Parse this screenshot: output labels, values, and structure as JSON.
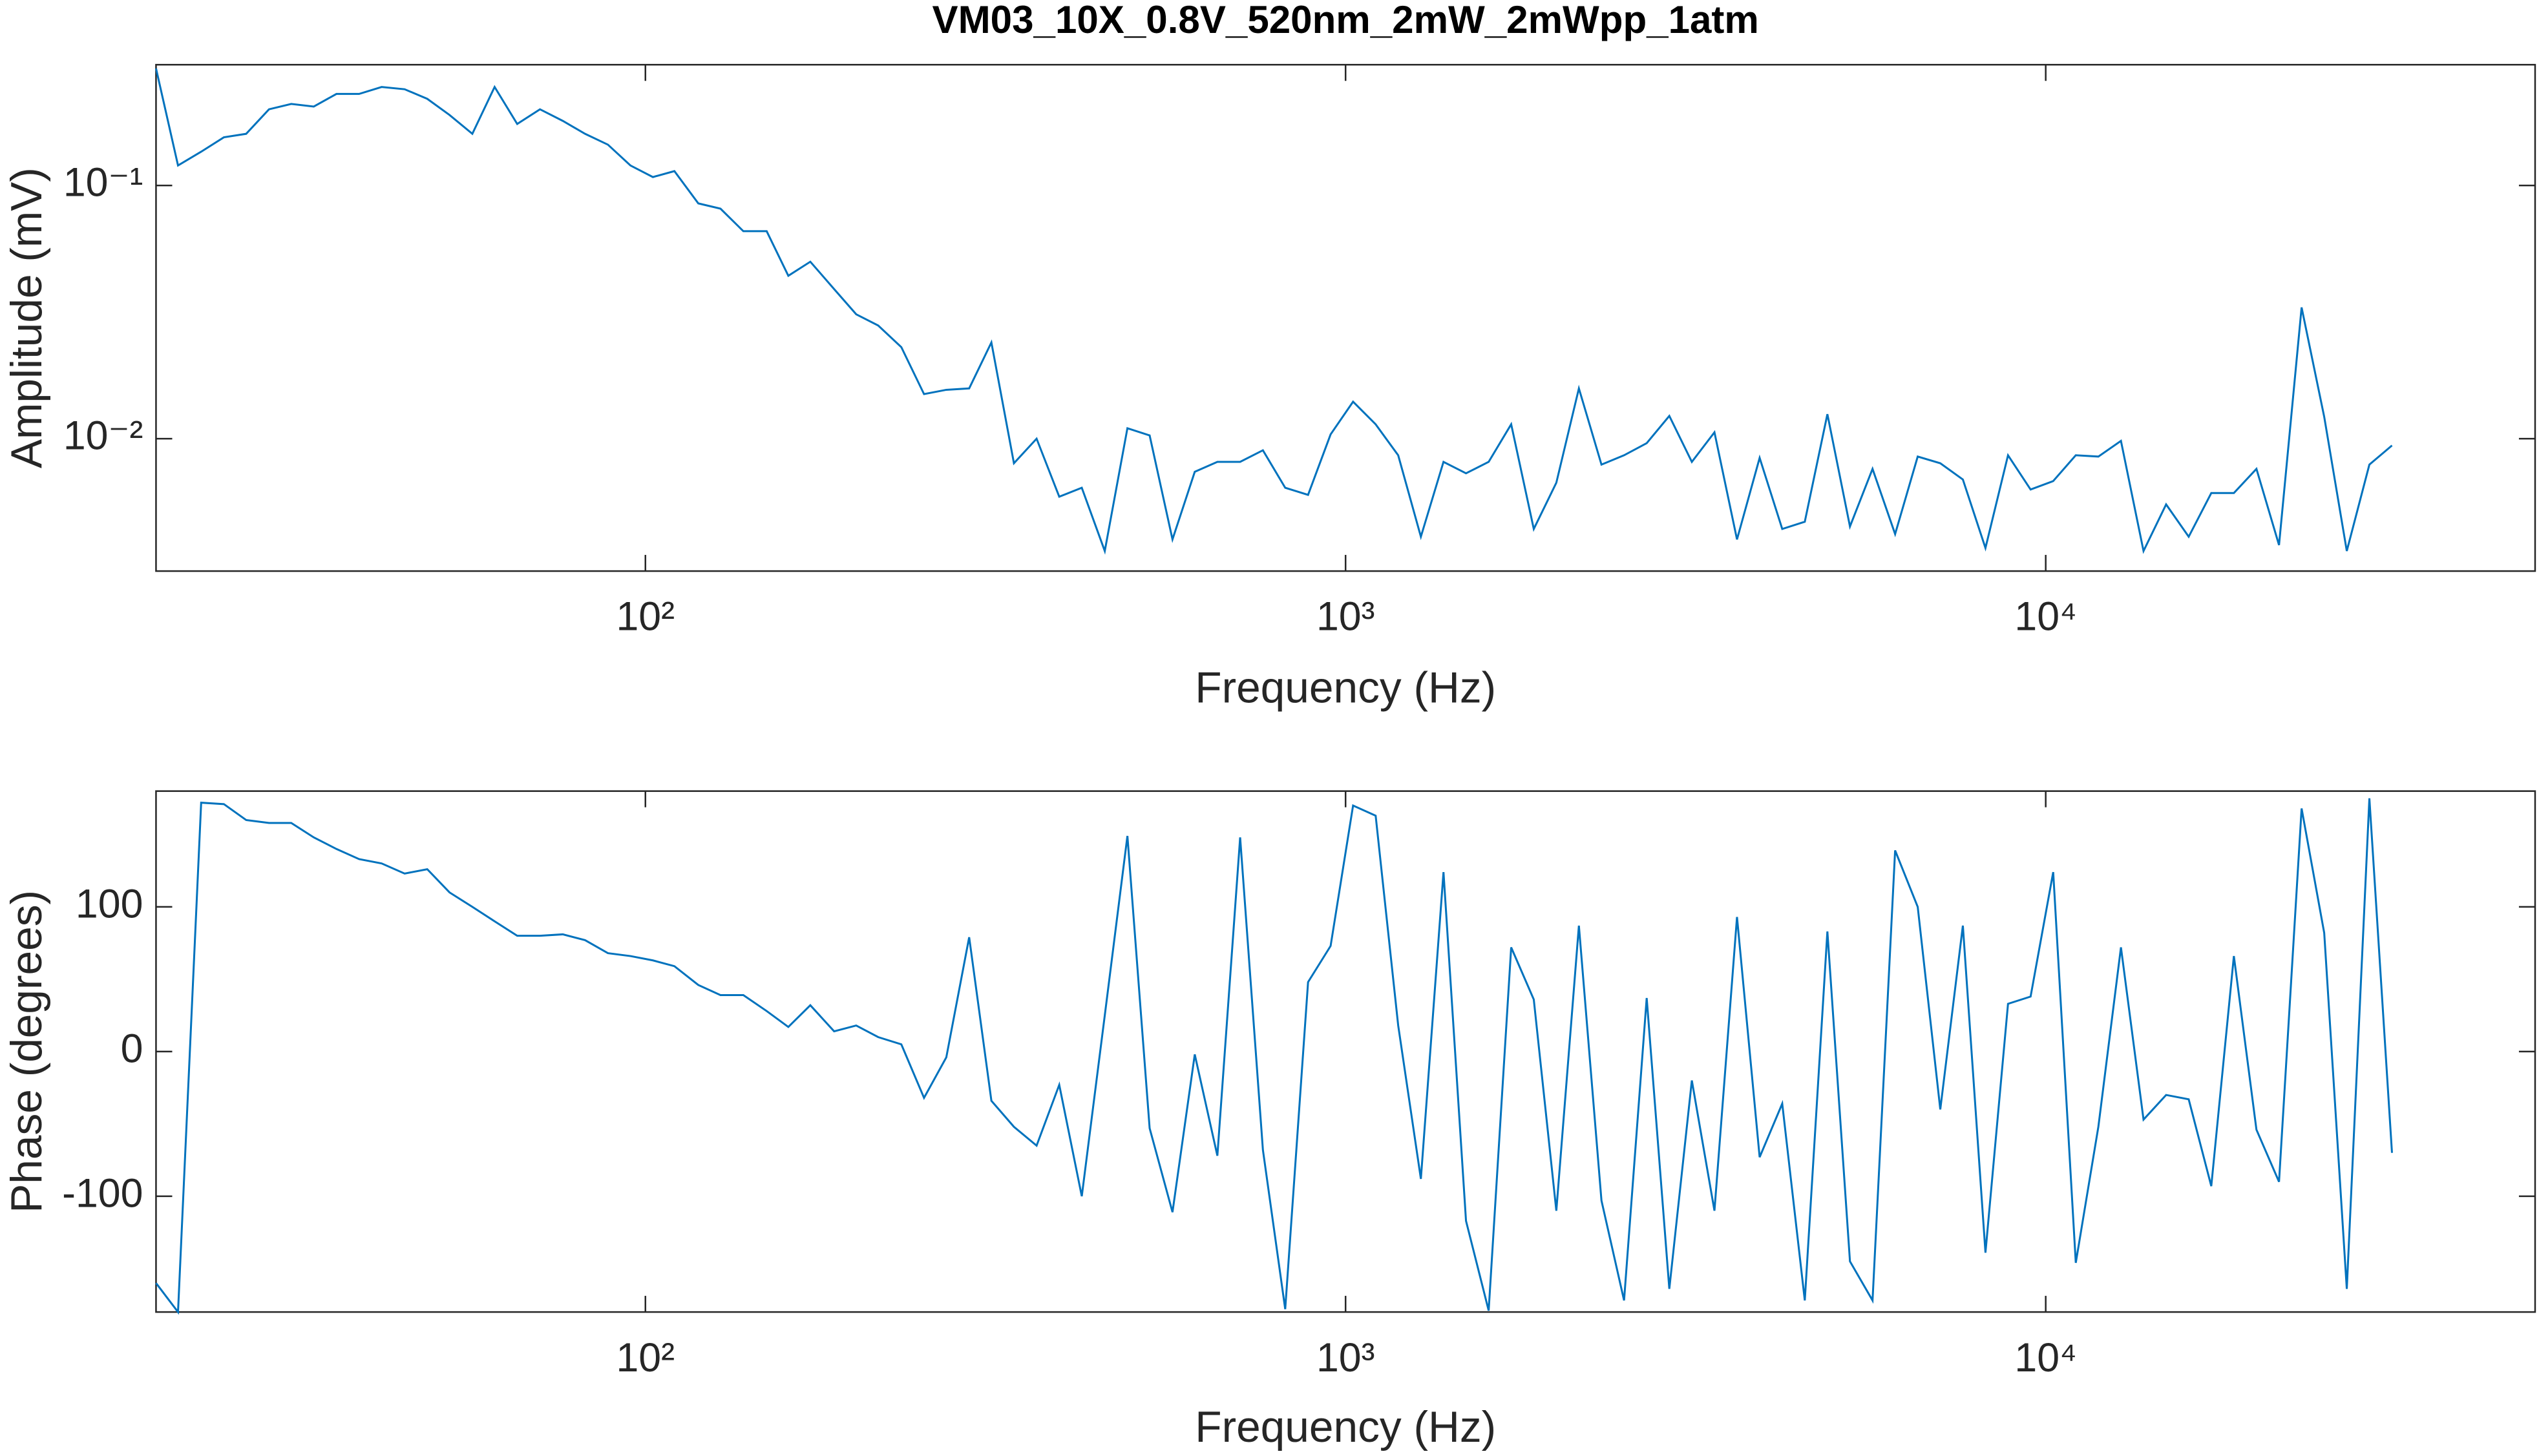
{
  "chart_data": [
    {
      "type": "line",
      "title": "VM03_10X_0.8V_520nm_2mW_2mWpp_1atm",
      "xlabel": "Frequency (Hz)",
      "ylabel": "Amplitude (mV)",
      "color": "#0072bd",
      "xscale": "log",
      "yscale": "log",
      "xlim": [
        20,
        50000
      ],
      "ylim": [
        0.003,
        0.3
      ],
      "xticks": [
        {
          "value": 100,
          "label": "10²"
        },
        {
          "value": 1000,
          "label": "10³"
        },
        {
          "value": 10000,
          "label": "10⁴"
        }
      ],
      "yticks": [
        {
          "value": 0.01,
          "label": "10⁻²"
        },
        {
          "value": 0.1,
          "label": "10⁻¹"
        }
      ],
      "x": [
        20,
        21.5,
        23.2,
        25.0,
        26.9,
        29.0,
        31.2,
        33.6,
        36.2,
        39.0,
        42.0,
        45.3,
        48.8,
        52.5,
        56.6,
        60.9,
        65.6,
        70.7,
        76.2,
        82.0,
        88.4,
        95.2,
        102.5,
        110,
        119,
        128,
        138,
        149,
        160,
        172,
        186,
        200,
        215,
        232,
        250,
        269,
        290,
        312,
        336,
        362,
        390,
        420,
        453,
        488,
        525,
        566,
        609,
        656,
        707,
        762,
        820,
        884,
        952,
        1025,
        1104,
        1189,
        1281,
        1380,
        1486,
        1601,
        1724,
        1857,
        2000,
        2154,
        2320,
        2499,
        2692,
        2900,
        3123,
        3364,
        3623,
        3903,
        4204,
        4528,
        4877,
        5253,
        5658,
        6094,
        6564,
        7070,
        7615,
        8202,
        8834,
        9515,
        10249,
        11039,
        11890,
        12807,
        13794,
        14858,
        16003,
        17237,
        18566,
        19997,
        21539,
        23199,
        24989,
        26915,
        28991,
        31230
      ],
      "values": [
        0.29,
        0.12,
        0.136,
        0.155,
        0.16,
        0.2,
        0.21,
        0.205,
        0.23,
        0.23,
        0.245,
        0.24,
        0.22,
        0.19,
        0.16,
        0.245,
        0.175,
        0.2,
        0.18,
        0.16,
        0.145,
        0.12,
        0.108,
        0.114,
        0.085,
        0.081,
        0.066,
        0.066,
        0.044,
        0.05,
        0.039,
        0.031,
        0.028,
        0.023,
        0.015,
        0.0156,
        0.0158,
        0.024,
        0.008,
        0.01,
        0.0059,
        0.0064,
        0.0036,
        0.011,
        0.0103,
        0.004,
        0.0074,
        0.0081,
        0.0081,
        0.009,
        0.0064,
        0.006,
        0.0104,
        0.014,
        0.0114,
        0.0086,
        0.0041,
        0.0081,
        0.0073,
        0.0081,
        0.0114,
        0.0044,
        0.0067,
        0.0158,
        0.0079,
        0.0086,
        0.0096,
        0.0123,
        0.0081,
        0.0106,
        0.004,
        0.0084,
        0.0044,
        0.0047,
        0.0125,
        0.0045,
        0.0076,
        0.0042,
        0.0085,
        0.008,
        0.0069,
        0.0037,
        0.0086,
        0.0063,
        0.0068,
        0.0086,
        0.0085,
        0.0098,
        0.0036,
        0.0055,
        0.0041,
        0.0061,
        0.0061,
        0.0076,
        0.0038,
        0.033,
        0.0122,
        0.0036,
        0.0079,
        0.0094
      ]
    },
    {
      "type": "line",
      "xlabel": "Frequency (Hz)",
      "ylabel": "Phase (degrees)",
      "color": "#0072bd",
      "xscale": "log",
      "yscale": "linear",
      "xlim": [
        20,
        50000
      ],
      "ylim": [
        -180,
        180
      ],
      "xticks": [
        {
          "value": 100,
          "label": "10²"
        },
        {
          "value": 1000,
          "label": "10³"
        },
        {
          "value": 10000,
          "label": "10⁴"
        }
      ],
      "yticks": [
        -100,
        0,
        100
      ],
      "x": [
        20,
        21.5,
        23.2,
        25.0,
        26.9,
        29.0,
        31.2,
        33.6,
        36.2,
        39.0,
        42.0,
        45.3,
        48.8,
        52.5,
        56.6,
        60.9,
        65.6,
        70.7,
        76.2,
        82.0,
        88.4,
        95.2,
        102.5,
        110,
        119,
        128,
        138,
        149,
        160,
        172,
        186,
        200,
        215,
        232,
        250,
        269,
        290,
        312,
        336,
        362,
        390,
        420,
        453,
        488,
        525,
        566,
        609,
        656,
        707,
        762,
        820,
        884,
        952,
        1025,
        1104,
        1189,
        1281,
        1380,
        1486,
        1601,
        1724,
        1857,
        2000,
        2154,
        2320,
        2499,
        2692,
        2900,
        3123,
        3364,
        3623,
        3903,
        4204,
        4528,
        4877,
        5253,
        5658,
        6094,
        6564,
        7070,
        7615,
        8202,
        8834,
        9515,
        10249,
        11039,
        11890,
        12807,
        13794,
        14858,
        16003,
        17237,
        18566,
        19997,
        21539,
        23199,
        24989,
        26915,
        28991,
        31230
      ],
      "values": [
        -160,
        -180,
        172,
        171,
        160,
        158,
        158,
        148,
        140,
        133,
        130,
        123,
        126,
        110,
        100,
        90,
        80,
        80,
        81,
        77,
        68,
        66,
        63,
        59,
        46,
        39,
        39,
        28,
        17,
        32,
        14,
        18,
        10,
        5,
        -32,
        -4,
        79,
        -34,
        -52,
        -65,
        -23,
        -100,
        25,
        149,
        -53,
        -111,
        -2,
        -72,
        148,
        -68,
        -178,
        48,
        73,
        170,
        163,
        18,
        -88,
        124,
        -117,
        -179,
        72,
        36,
        -110,
        87,
        -103,
        -172,
        37,
        -164,
        -20,
        -110,
        93,
        -73,
        -36,
        -172,
        83,
        -145,
        -172,
        139,
        100,
        -40,
        87,
        -139,
        33,
        38,
        124,
        -146,
        -52,
        72,
        -47,
        -30,
        -33,
        -93,
        66,
        -54,
        -90,
        168,
        82,
        -164,
        175,
        -70
      ]
    }
  ]
}
